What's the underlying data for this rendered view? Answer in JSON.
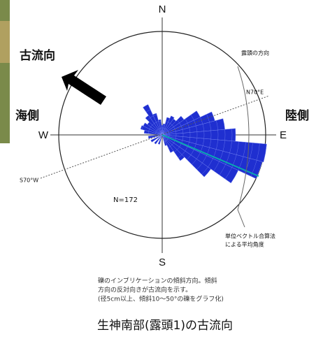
{
  "figure": {
    "directions": {
      "north": "N",
      "south": "S",
      "east": "E",
      "west": "W"
    },
    "labels": {
      "paleocurrent": "古流向",
      "sea_side": "海側",
      "land_side": "陸側",
      "outcrop_direction": "露頭の方向",
      "n70e": "N70°E",
      "s70w": "S70°W",
      "count": "N=172",
      "mean_angle": [
        "単位ベクトル合算法",
        "による平均角度"
      ]
    },
    "caption": [
      "礫のインブリケーションの傾斜方向。傾斜",
      "方向の反対向きが古流向を示す。",
      "(径5cm以上、傾斜10～50°の礫をグラフ化)"
    ],
    "title": "生神南部(露頭1)の古流向"
  }
}
